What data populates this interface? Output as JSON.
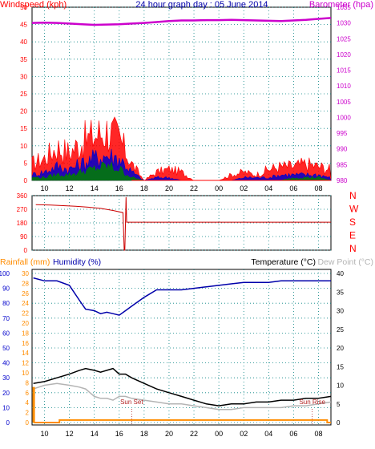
{
  "header": {
    "windspeed_label": "Windspeed (kph)",
    "title": "24 hour graph day : 05 June 2014",
    "barometer_label": "Barometer (hpa)"
  },
  "lower_header": {
    "rainfall_label": "Rainfall (mm)",
    "humidity_label": "Humidity (%)",
    "temperature_label": "Temperature (°C)",
    "dewpoint_label": "Dew Point (°C)"
  },
  "annotations": {
    "sunset": "Sun Set",
    "sunrise": "Sun Rise"
  },
  "colors": {
    "wind_gust": "#ff0000",
    "wind_avg": "#0000cc",
    "wind_low": "#008000",
    "barometer": "#cc00cc",
    "direction": "#cc0000",
    "rainfall": "#ff8c00",
    "humidity": "#0000aa",
    "temperature": "#000000",
    "dewpoint": "#b4b4b4",
    "axis_left": "#ff0000",
    "axis_right": "#cc00cc",
    "grid": "#008080"
  },
  "chart_data": [
    {
      "type": "line",
      "panel": "wind-barometer",
      "title": "24 hour graph day : 05 June 2014",
      "ylabel": "Windspeed (kph)",
      "ylabel_right": "Barometer (hpa)",
      "ylim": [
        0,
        50
      ],
      "ylim_right": [
        980,
        1035
      ],
      "x_tick_labels": [
        "10",
        "12",
        "14",
        "16",
        "18",
        "20",
        "22",
        "00",
        "02",
        "04",
        "06",
        "08"
      ],
      "y_ticks": [
        0,
        5,
        10,
        15,
        20,
        25,
        30,
        35,
        40,
        45,
        50
      ],
      "y_ticks_right": [
        980,
        985,
        990,
        995,
        1000,
        1005,
        1010,
        1015,
        1020,
        1025,
        1030,
        1035
      ],
      "x_hours": [
        9,
        10,
        11,
        12,
        13,
        14,
        15,
        16,
        17,
        18,
        19,
        20,
        21,
        22,
        23,
        24,
        25,
        26,
        27,
        28,
        29,
        30,
        31,
        32,
        33
      ],
      "series": [
        {
          "name": "Barometer",
          "values": [
            1030.0,
            1030.1,
            1030.0,
            1029.8,
            1029.6,
            1029.4,
            1029.5,
            1029.6,
            1029.8,
            1030.0,
            1030.3,
            1030.6,
            1030.8,
            1030.8,
            1030.9,
            1030.9,
            1031.0,
            1030.9,
            1030.8,
            1030.7,
            1030.6,
            1030.8,
            1031.0,
            1031.3,
            1031.6
          ]
        },
        {
          "name": "Wind gust",
          "values": [
            6,
            8,
            12,
            10,
            14,
            16,
            18,
            15,
            6,
            0,
            3,
            4,
            3,
            0,
            0,
            0,
            2,
            3,
            2,
            4,
            5,
            5,
            6,
            5,
            4
          ]
        },
        {
          "name": "Wind average",
          "values": [
            2,
            3,
            5,
            4,
            6,
            8,
            9,
            8,
            3,
            0,
            1,
            1,
            0,
            0,
            0,
            0,
            0,
            1,
            1,
            1,
            2,
            2,
            2,
            2,
            1
          ]
        },
        {
          "name": "Wind low",
          "values": [
            1,
            1,
            2,
            2,
            3,
            4,
            5,
            4,
            1,
            0,
            0,
            0,
            0,
            0,
            0,
            0,
            0,
            0,
            0,
            0,
            0,
            1,
            1,
            1,
            0
          ]
        }
      ]
    },
    {
      "type": "line",
      "panel": "wind-direction",
      "ylim": [
        0,
        360
      ],
      "y_ticks": [
        0,
        90,
        180,
        270,
        360
      ],
      "compass_labels": [
        "N",
        "W",
        "S",
        "E",
        "N"
      ],
      "x_hours": [
        9.3,
        10.5,
        11.5,
        12.5,
        13.5,
        14.5,
        15.5,
        16.3,
        16.4,
        16.45,
        16.55,
        16.6,
        17,
        20,
        24,
        28,
        33
      ],
      "series": [
        {
          "name": "Wind direction",
          "values": [
            300,
            298,
            294,
            290,
            284,
            276,
            262,
            248,
            0,
            0,
            350,
            185,
            185,
            185,
            185,
            185,
            185
          ]
        }
      ]
    },
    {
      "type": "line",
      "panel": "rain-humidity-temperature",
      "ylabel": "Rainfall (mm)",
      "ylabel_humidity": "Humidity (%)",
      "ylabel_right": "Temperature (°C)",
      "ylabel_right2": "Dew Point (°C)",
      "ylim_rain": [
        0,
        30
      ],
      "ylim_humidity": [
        0,
        100
      ],
      "ylim_temp": [
        0,
        40
      ],
      "y_ticks_rain": [
        0,
        2,
        4,
        6,
        8,
        10,
        12,
        14,
        16,
        18,
        20,
        22,
        24,
        26,
        28,
        30
      ],
      "y_ticks_humidity": [
        0,
        10,
        20,
        30,
        40,
        50,
        60,
        70,
        80,
        90,
        100
      ],
      "y_ticks_temp": [
        0,
        5,
        10,
        15,
        20,
        25,
        30,
        35,
        40
      ],
      "x_tick_labels": [
        "10",
        "12",
        "14",
        "16",
        "18",
        "20",
        "22",
        "00",
        "02",
        "04",
        "06",
        "08"
      ],
      "x_hours": [
        9.1,
        10,
        11,
        12,
        12.8,
        13.3,
        14,
        14.5,
        15,
        15.5,
        16,
        16.5,
        17,
        18,
        19,
        20,
        21,
        22,
        23,
        24,
        25,
        26,
        27,
        28,
        29,
        30,
        31,
        32,
        33
      ],
      "series": [
        {
          "name": "Humidity",
          "values": [
            97,
            95,
            95,
            92,
            82,
            76,
            75,
            73,
            74,
            73,
            72,
            75,
            78,
            84,
            89,
            89,
            89,
            90,
            91,
            92,
            93,
            94,
            94,
            94,
            95,
            95,
            95,
            95,
            95
          ]
        },
        {
          "name": "Temperature",
          "values": [
            10.5,
            11,
            12,
            13,
            14,
            14.5,
            14,
            13.5,
            14,
            14.5,
            13,
            13,
            12,
            10.5,
            9,
            8,
            7,
            6,
            5,
            4.5,
            5,
            5,
            5.5,
            5.5,
            6,
            6,
            6.5,
            6.5,
            7
          ]
        },
        {
          "name": "Dew Point",
          "values": [
            9,
            10,
            10.5,
            10,
            9.5,
            9,
            7,
            6.5,
            6.5,
            6,
            7,
            7,
            6.5,
            6,
            5.5,
            5,
            5,
            4.5,
            4,
            3.5,
            3.5,
            4,
            4,
            4,
            4,
            4.5,
            4.5,
            5,
            5.5
          ]
        },
        {
          "name": "Rainfall",
          "values": [
            7,
            0,
            0,
            0.5,
            0.5,
            0.5,
            0.5,
            0.5,
            0.5,
            0.5,
            0.5,
            0.5,
            0.5,
            0.5,
            0.5,
            0.5,
            0.5,
            0.5,
            0.5,
            0.5,
            0.5,
            0.5,
            0.5,
            0.5,
            0.5,
            0.5,
            0.5,
            0.5,
            0
          ]
        }
      ],
      "markers": [
        {
          "label": "Sun Set",
          "hour": 17.0
        },
        {
          "label": "Sun Rise",
          "hour": 31.5
        }
      ]
    }
  ]
}
